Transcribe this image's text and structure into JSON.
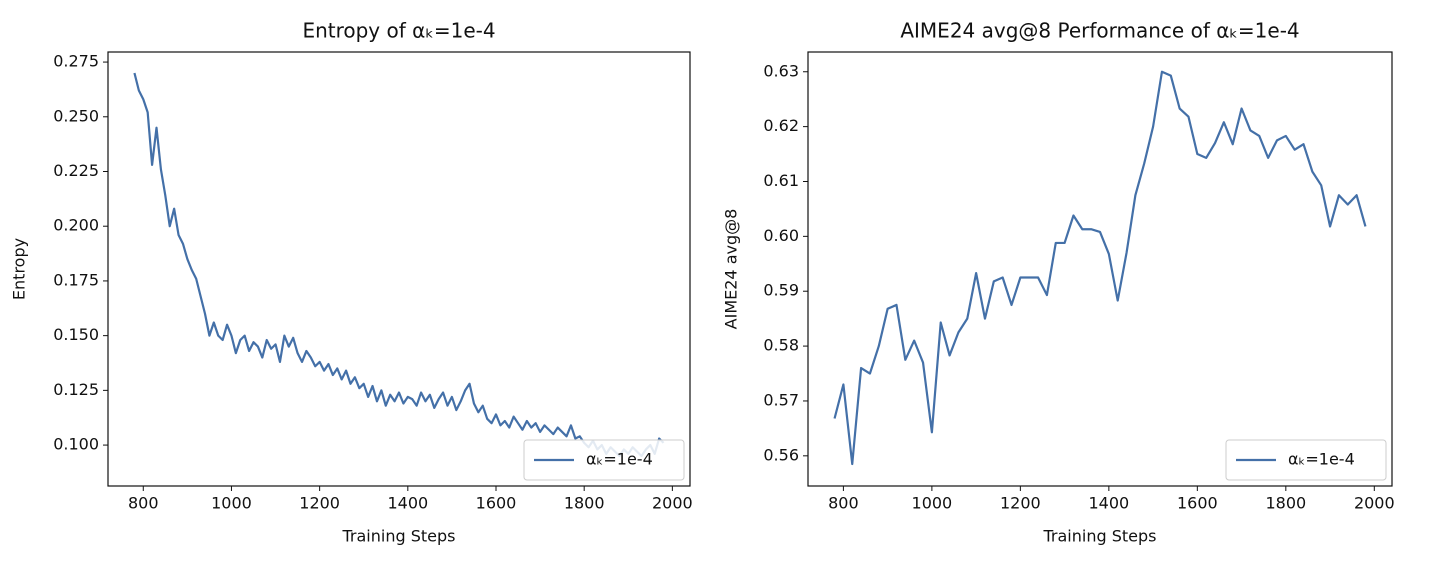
{
  "chart_data": [
    {
      "type": "line",
      "title": "Entropy of αₖ=1e-4",
      "x_label": "Training Steps",
      "y_label": "Entropy",
      "legend": "lower right",
      "x": [
        780,
        790,
        800,
        810,
        820,
        830,
        840,
        850,
        860,
        870,
        880,
        890,
        900,
        910,
        920,
        930,
        940,
        950,
        960,
        970,
        980,
        990,
        1000,
        1010,
        1020,
        1030,
        1040,
        1050,
        1060,
        1070,
        1080,
        1090,
        1100,
        1110,
        1120,
        1130,
        1140,
        1150,
        1160,
        1170,
        1180,
        1190,
        1200,
        1210,
        1220,
        1230,
        1240,
        1250,
        1260,
        1270,
        1280,
        1290,
        1300,
        1310,
        1320,
        1330,
        1340,
        1350,
        1360,
        1370,
        1380,
        1390,
        1400,
        1410,
        1420,
        1430,
        1440,
        1450,
        1460,
        1470,
        1480,
        1490,
        1500,
        1510,
        1520,
        1530,
        1540,
        1550,
        1560,
        1570,
        1580,
        1590,
        1600,
        1610,
        1620,
        1630,
        1640,
        1650,
        1660,
        1670,
        1680,
        1690,
        1700,
        1710,
        1720,
        1730,
        1740,
        1750,
        1760,
        1770,
        1780,
        1790,
        1800,
        1810,
        1820,
        1830,
        1840,
        1850,
        1860,
        1870,
        1880,
        1890,
        1900,
        1910,
        1920,
        1930,
        1940,
        1950,
        1960,
        1970,
        1980
      ],
      "series": [
        {
          "name": "αₖ=1e-4",
          "color": "#4470a8",
          "values": [
            0.27,
            0.262,
            0.258,
            0.252,
            0.228,
            0.245,
            0.226,
            0.214,
            0.2,
            0.208,
            0.196,
            0.192,
            0.185,
            0.18,
            0.176,
            0.168,
            0.16,
            0.15,
            0.156,
            0.15,
            0.148,
            0.155,
            0.15,
            0.142,
            0.148,
            0.15,
            0.143,
            0.147,
            0.145,
            0.14,
            0.148,
            0.144,
            0.146,
            0.138,
            0.15,
            0.145,
            0.149,
            0.142,
            0.138,
            0.143,
            0.14,
            0.136,
            0.138,
            0.134,
            0.137,
            0.132,
            0.135,
            0.13,
            0.134,
            0.128,
            0.131,
            0.126,
            0.128,
            0.122,
            0.127,
            0.12,
            0.125,
            0.118,
            0.123,
            0.12,
            0.124,
            0.119,
            0.122,
            0.121,
            0.118,
            0.124,
            0.12,
            0.123,
            0.117,
            0.121,
            0.124,
            0.118,
            0.122,
            0.116,
            0.12,
            0.125,
            0.128,
            0.119,
            0.115,
            0.118,
            0.112,
            0.11,
            0.114,
            0.109,
            0.111,
            0.108,
            0.113,
            0.11,
            0.107,
            0.111,
            0.108,
            0.11,
            0.106,
            0.109,
            0.107,
            0.105,
            0.108,
            0.106,
            0.104,
            0.109,
            0.103,
            0.104,
            0.101,
            0.099,
            0.102,
            0.098,
            0.1,
            0.096,
            0.099,
            0.097,
            0.095,
            0.098,
            0.096,
            0.099,
            0.097,
            0.095,
            0.098,
            0.1,
            0.096,
            0.103,
            0.101
          ]
        }
      ],
      "xlim": [
        720,
        2040
      ],
      "xticks": [
        800,
        1000,
        1200,
        1400,
        1600,
        1800,
        2000
      ],
      "ylim": [
        0.0813,
        0.2796
      ],
      "yticks": [
        {
          "value": 0.1,
          "label": "0.100"
        },
        0.125,
        {
          "value": 0.15,
          "label": "0.150"
        },
        0.175,
        {
          "value": 0.2,
          "label": "0.200"
        },
        0.225,
        {
          "value": 0.25,
          "label": "0.250"
        },
        0.275
      ]
    },
    {
      "type": "line",
      "title": "AIME24 avg@8 Performance of αₖ=1e-4",
      "x_label": "Training Steps",
      "y_label": "AIME24 avg@8",
      "legend": "lower right",
      "x": [
        780,
        800,
        820,
        840,
        860,
        880,
        900,
        920,
        940,
        960,
        980,
        1000,
        1020,
        1040,
        1060,
        1080,
        1100,
        1120,
        1140,
        1160,
        1180,
        1200,
        1220,
        1240,
        1260,
        1280,
        1300,
        1320,
        1340,
        1360,
        1380,
        1400,
        1420,
        1440,
        1460,
        1480,
        1500,
        1520,
        1540,
        1560,
        1580,
        1600,
        1620,
        1640,
        1660,
        1680,
        1700,
        1720,
        1740,
        1760,
        1780,
        1800,
        1820,
        1840,
        1860,
        1880,
        1900,
        1920,
        1940,
        1960,
        1980
      ],
      "series": [
        {
          "name": "αₖ=1e-4",
          "color": "#4470a8",
          "values": [
            0.5668,
            0.573,
            0.5585,
            0.576,
            0.575,
            0.58,
            0.5868,
            0.5875,
            0.5775,
            0.581,
            0.577,
            0.5643,
            0.5843,
            0.5783,
            0.5825,
            0.585,
            0.5933,
            0.585,
            0.5918,
            0.5925,
            0.5875,
            0.5925,
            0.5925,
            0.5925,
            0.5893,
            0.5988,
            0.5988,
            0.6038,
            0.6013,
            0.6013,
            0.6008,
            0.5968,
            0.5883,
            0.597,
            0.6075,
            0.6133,
            0.62,
            0.63,
            0.6293,
            0.6233,
            0.6218,
            0.615,
            0.6143,
            0.617,
            0.6208,
            0.6168,
            0.6233,
            0.6193,
            0.6183,
            0.6143,
            0.6175,
            0.6183,
            0.6158,
            0.6168,
            0.6118,
            0.6093,
            0.6018,
            0.6075,
            0.6058,
            0.6075,
            0.6018
          ]
        }
      ],
      "xlim": [
        720,
        2040
      ],
      "xticks": [
        800,
        1000,
        1200,
        1400,
        1600,
        1800,
        2000
      ],
      "ylim": [
        0.5545,
        0.6336
      ],
      "yticks": [
        0.56,
        0.57,
        0.58,
        0.59,
        {
          "value": 0.6,
          "label": "0.60"
        },
        0.61,
        0.62,
        0.63
      ]
    }
  ]
}
